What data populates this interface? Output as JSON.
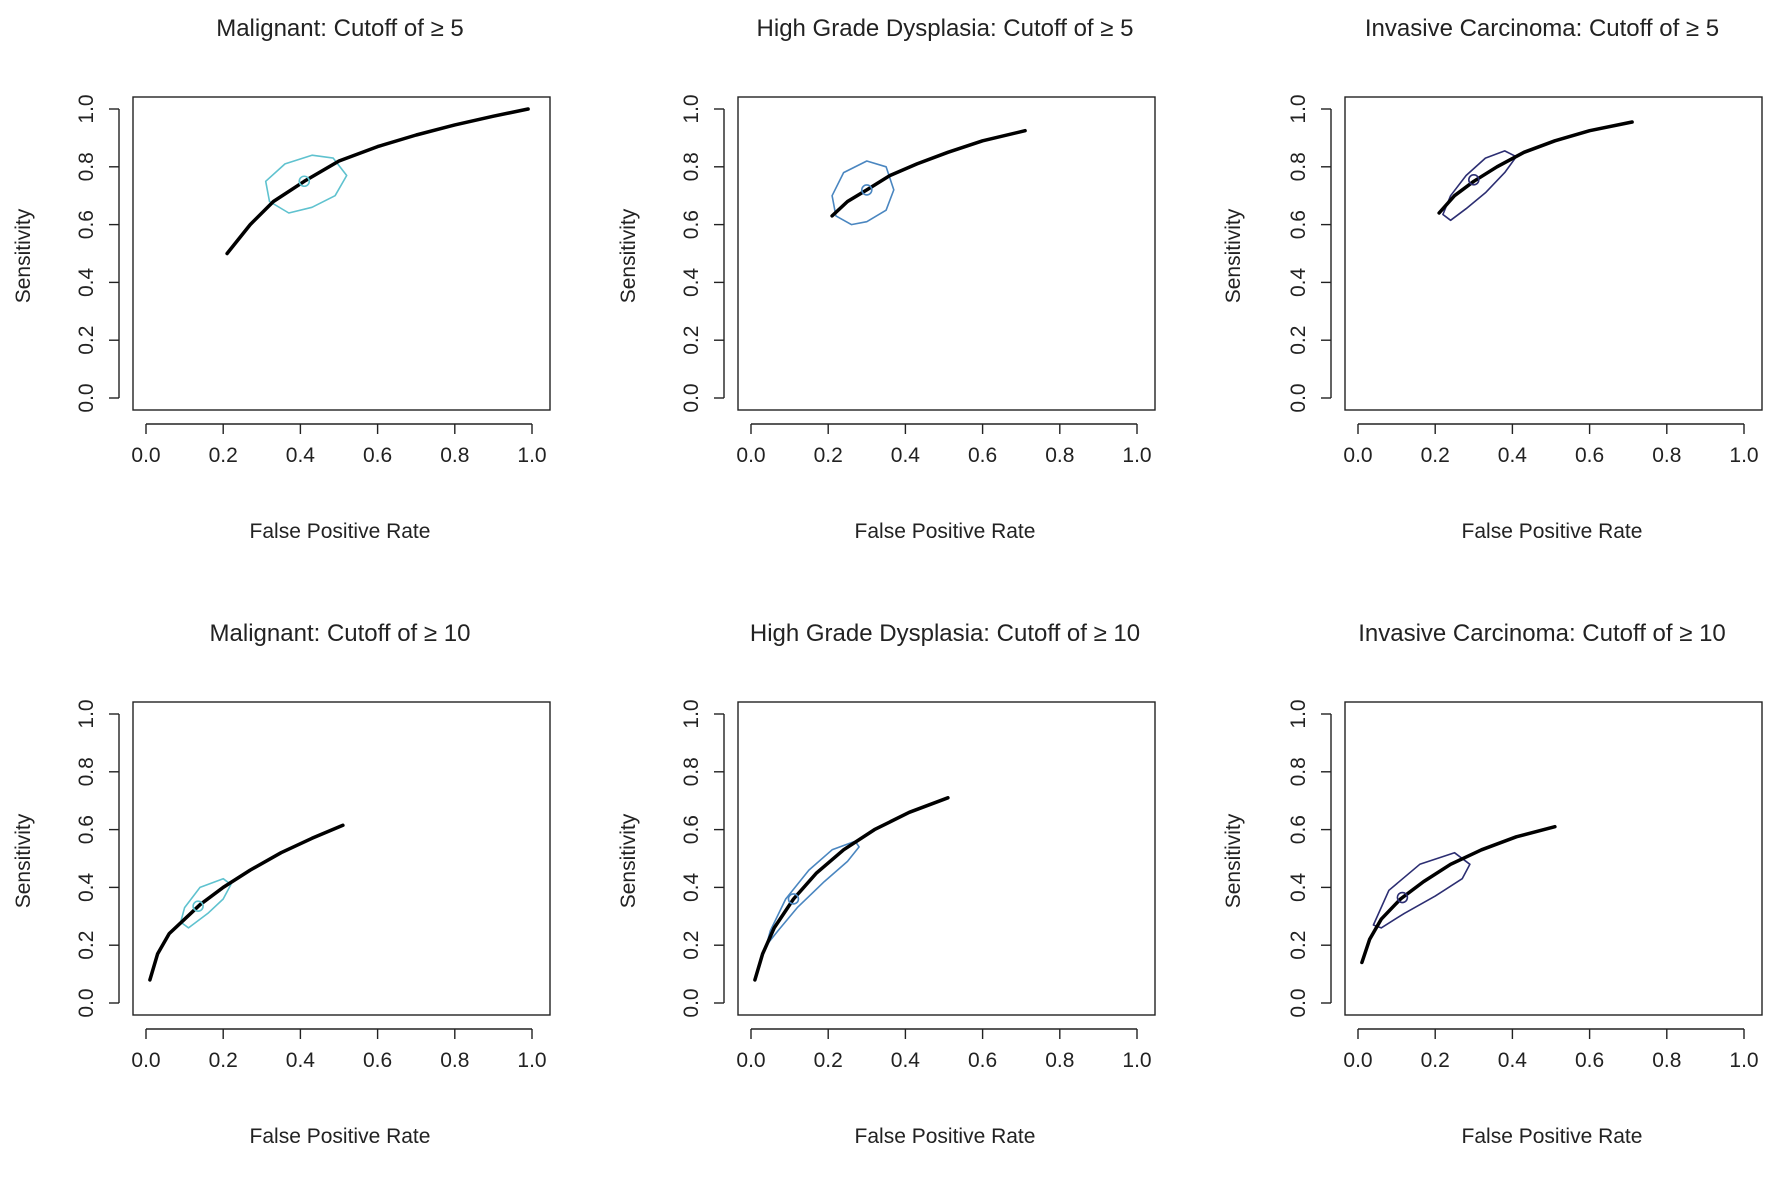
{
  "chart_data": [
    {
      "type": "line",
      "title": "Malignant: Cutoff of  ≥ 5",
      "xlabel": "False Positive Rate",
      "ylabel": "Sensitivity",
      "xlim": [
        0,
        1
      ],
      "ylim": [
        0,
        1
      ],
      "xticks": [
        "0.0",
        "0.2",
        "0.4",
        "0.6",
        "0.8",
        "1.0"
      ],
      "yticks": [
        "0.0",
        "0.2",
        "0.4",
        "0.6",
        "0.8",
        "1.0"
      ],
      "grid": false,
      "color": "#5fc2cf",
      "curve": {
        "x": [
          0.21,
          0.27,
          0.33,
          0.41,
          0.5,
          0.6,
          0.7,
          0.8,
          0.9,
          0.99
        ],
        "y": [
          0.5,
          0.6,
          0.68,
          0.75,
          0.82,
          0.87,
          0.91,
          0.945,
          0.975,
          1.0
        ]
      },
      "point": {
        "x": 0.41,
        "y": 0.75
      },
      "region": {
        "x": [
          0.485,
          0.52,
          0.49,
          0.43,
          0.37,
          0.32,
          0.31,
          0.36,
          0.43,
          0.485
        ],
        "y": [
          0.83,
          0.77,
          0.7,
          0.66,
          0.64,
          0.68,
          0.75,
          0.81,
          0.84,
          0.83
        ]
      }
    },
    {
      "type": "line",
      "title": "High Grade Dysplasia: Cutoff of  ≥ 5",
      "xlabel": "False Positive Rate",
      "ylabel": "Sensitivity",
      "xlim": [
        0,
        1
      ],
      "ylim": [
        0,
        1
      ],
      "xticks": [
        "0.0",
        "0.2",
        "0.4",
        "0.6",
        "0.8",
        "1.0"
      ],
      "yticks": [
        "0.0",
        "0.2",
        "0.4",
        "0.6",
        "0.8",
        "1.0"
      ],
      "grid": false,
      "color": "#4a86c0",
      "curve": {
        "x": [
          0.21,
          0.25,
          0.3,
          0.36,
          0.43,
          0.51,
          0.6,
          0.71
        ],
        "y": [
          0.63,
          0.68,
          0.72,
          0.77,
          0.81,
          0.85,
          0.89,
          0.925
        ]
      },
      "point": {
        "x": 0.3,
        "y": 0.72
      },
      "region": {
        "x": [
          0.35,
          0.37,
          0.35,
          0.3,
          0.26,
          0.22,
          0.21,
          0.24,
          0.3,
          0.35
        ],
        "y": [
          0.8,
          0.72,
          0.65,
          0.61,
          0.6,
          0.63,
          0.7,
          0.78,
          0.82,
          0.8
        ]
      }
    },
    {
      "type": "line",
      "title": "Invasive Carcinoma: Cutoff of  ≥ 5",
      "xlabel": "False Positive Rate",
      "ylabel": "Sensitivity",
      "xlim": [
        0,
        1
      ],
      "ylim": [
        0,
        1
      ],
      "xticks": [
        "0.0",
        "0.2",
        "0.4",
        "0.6",
        "0.8",
        "1.0"
      ],
      "yticks": [
        "0.0",
        "0.2",
        "0.4",
        "0.6",
        "0.8",
        "1.0"
      ],
      "grid": false,
      "color": "#2c2e72",
      "curve": {
        "x": [
          0.21,
          0.25,
          0.3,
          0.36,
          0.43,
          0.51,
          0.6,
          0.71
        ],
        "y": [
          0.64,
          0.7,
          0.75,
          0.8,
          0.85,
          0.89,
          0.925,
          0.955
        ]
      },
      "point": {
        "x": 0.3,
        "y": 0.755
      },
      "region": {
        "x": [
          0.38,
          0.41,
          0.38,
          0.33,
          0.28,
          0.24,
          0.22,
          0.24,
          0.28,
          0.33,
          0.38
        ],
        "y": [
          0.855,
          0.835,
          0.78,
          0.71,
          0.655,
          0.615,
          0.635,
          0.7,
          0.77,
          0.83,
          0.855
        ]
      }
    },
    {
      "type": "line",
      "title": "Malignant: Cutoff of  ≥ 10",
      "xlabel": "False Positive Rate",
      "ylabel": "Sensitivity",
      "xlim": [
        0,
        1
      ],
      "ylim": [
        0,
        1
      ],
      "xticks": [
        "0.0",
        "0.2",
        "0.4",
        "0.6",
        "0.8",
        "1.0"
      ],
      "yticks": [
        "0.0",
        "0.2",
        "0.4",
        "0.6",
        "0.8",
        "1.0"
      ],
      "grid": false,
      "color": "#5fc2cf",
      "curve": {
        "x": [
          0.01,
          0.03,
          0.06,
          0.1,
          0.14,
          0.2,
          0.27,
          0.35,
          0.43,
          0.51
        ],
        "y": [
          0.08,
          0.17,
          0.24,
          0.29,
          0.34,
          0.4,
          0.46,
          0.52,
          0.57,
          0.615
        ]
      },
      "point": {
        "x": 0.135,
        "y": 0.335
      },
      "region": {
        "x": [
          0.2,
          0.22,
          0.2,
          0.16,
          0.11,
          0.09,
          0.1,
          0.14,
          0.2
        ],
        "y": [
          0.43,
          0.41,
          0.36,
          0.31,
          0.26,
          0.28,
          0.33,
          0.4,
          0.43
        ]
      }
    },
    {
      "type": "line",
      "title": "High Grade Dysplasia: Cutoff of  ≥ 10",
      "xlabel": "False Positive Rate",
      "ylabel": "Sensitivity",
      "xlim": [
        0,
        1
      ],
      "ylim": [
        0,
        1
      ],
      "xticks": [
        "0.0",
        "0.2",
        "0.4",
        "0.6",
        "0.8",
        "1.0"
      ],
      "yticks": [
        "0.0",
        "0.2",
        "0.4",
        "0.6",
        "0.8",
        "1.0"
      ],
      "grid": false,
      "color": "#4a86c0",
      "curve": {
        "x": [
          0.01,
          0.03,
          0.06,
          0.11,
          0.17,
          0.24,
          0.32,
          0.41,
          0.51
        ],
        "y": [
          0.08,
          0.17,
          0.26,
          0.36,
          0.45,
          0.53,
          0.6,
          0.66,
          0.71
        ]
      },
      "point": {
        "x": 0.11,
        "y": 0.36
      },
      "region": {
        "x": [
          0.27,
          0.28,
          0.25,
          0.19,
          0.12,
          0.07,
          0.04,
          0.05,
          0.09,
          0.15,
          0.21,
          0.27
        ],
        "y": [
          0.56,
          0.54,
          0.49,
          0.42,
          0.33,
          0.25,
          0.2,
          0.25,
          0.36,
          0.46,
          0.53,
          0.56
        ]
      }
    },
    {
      "type": "line",
      "title": "Invasive Carcinoma: Cutoff of  ≥ 10",
      "xlabel": "False Positive Rate",
      "ylabel": "Sensitivity",
      "xlim": [
        0,
        1
      ],
      "ylim": [
        0,
        1
      ],
      "xticks": [
        "0.0",
        "0.2",
        "0.4",
        "0.6",
        "0.8",
        "1.0"
      ],
      "yticks": [
        "0.0",
        "0.2",
        "0.4",
        "0.6",
        "0.8",
        "1.0"
      ],
      "grid": false,
      "color": "#2c2e72",
      "curve": {
        "x": [
          0.01,
          0.03,
          0.06,
          0.11,
          0.17,
          0.24,
          0.32,
          0.41,
          0.51
        ],
        "y": [
          0.14,
          0.22,
          0.29,
          0.36,
          0.42,
          0.48,
          0.53,
          0.575,
          0.61
        ]
      },
      "point": {
        "x": 0.115,
        "y": 0.365
      },
      "region": {
        "x": [
          0.25,
          0.29,
          0.27,
          0.2,
          0.12,
          0.06,
          0.04,
          0.08,
          0.16,
          0.25
        ],
        "y": [
          0.52,
          0.48,
          0.43,
          0.37,
          0.31,
          0.26,
          0.27,
          0.39,
          0.48,
          0.52
        ]
      }
    }
  ]
}
